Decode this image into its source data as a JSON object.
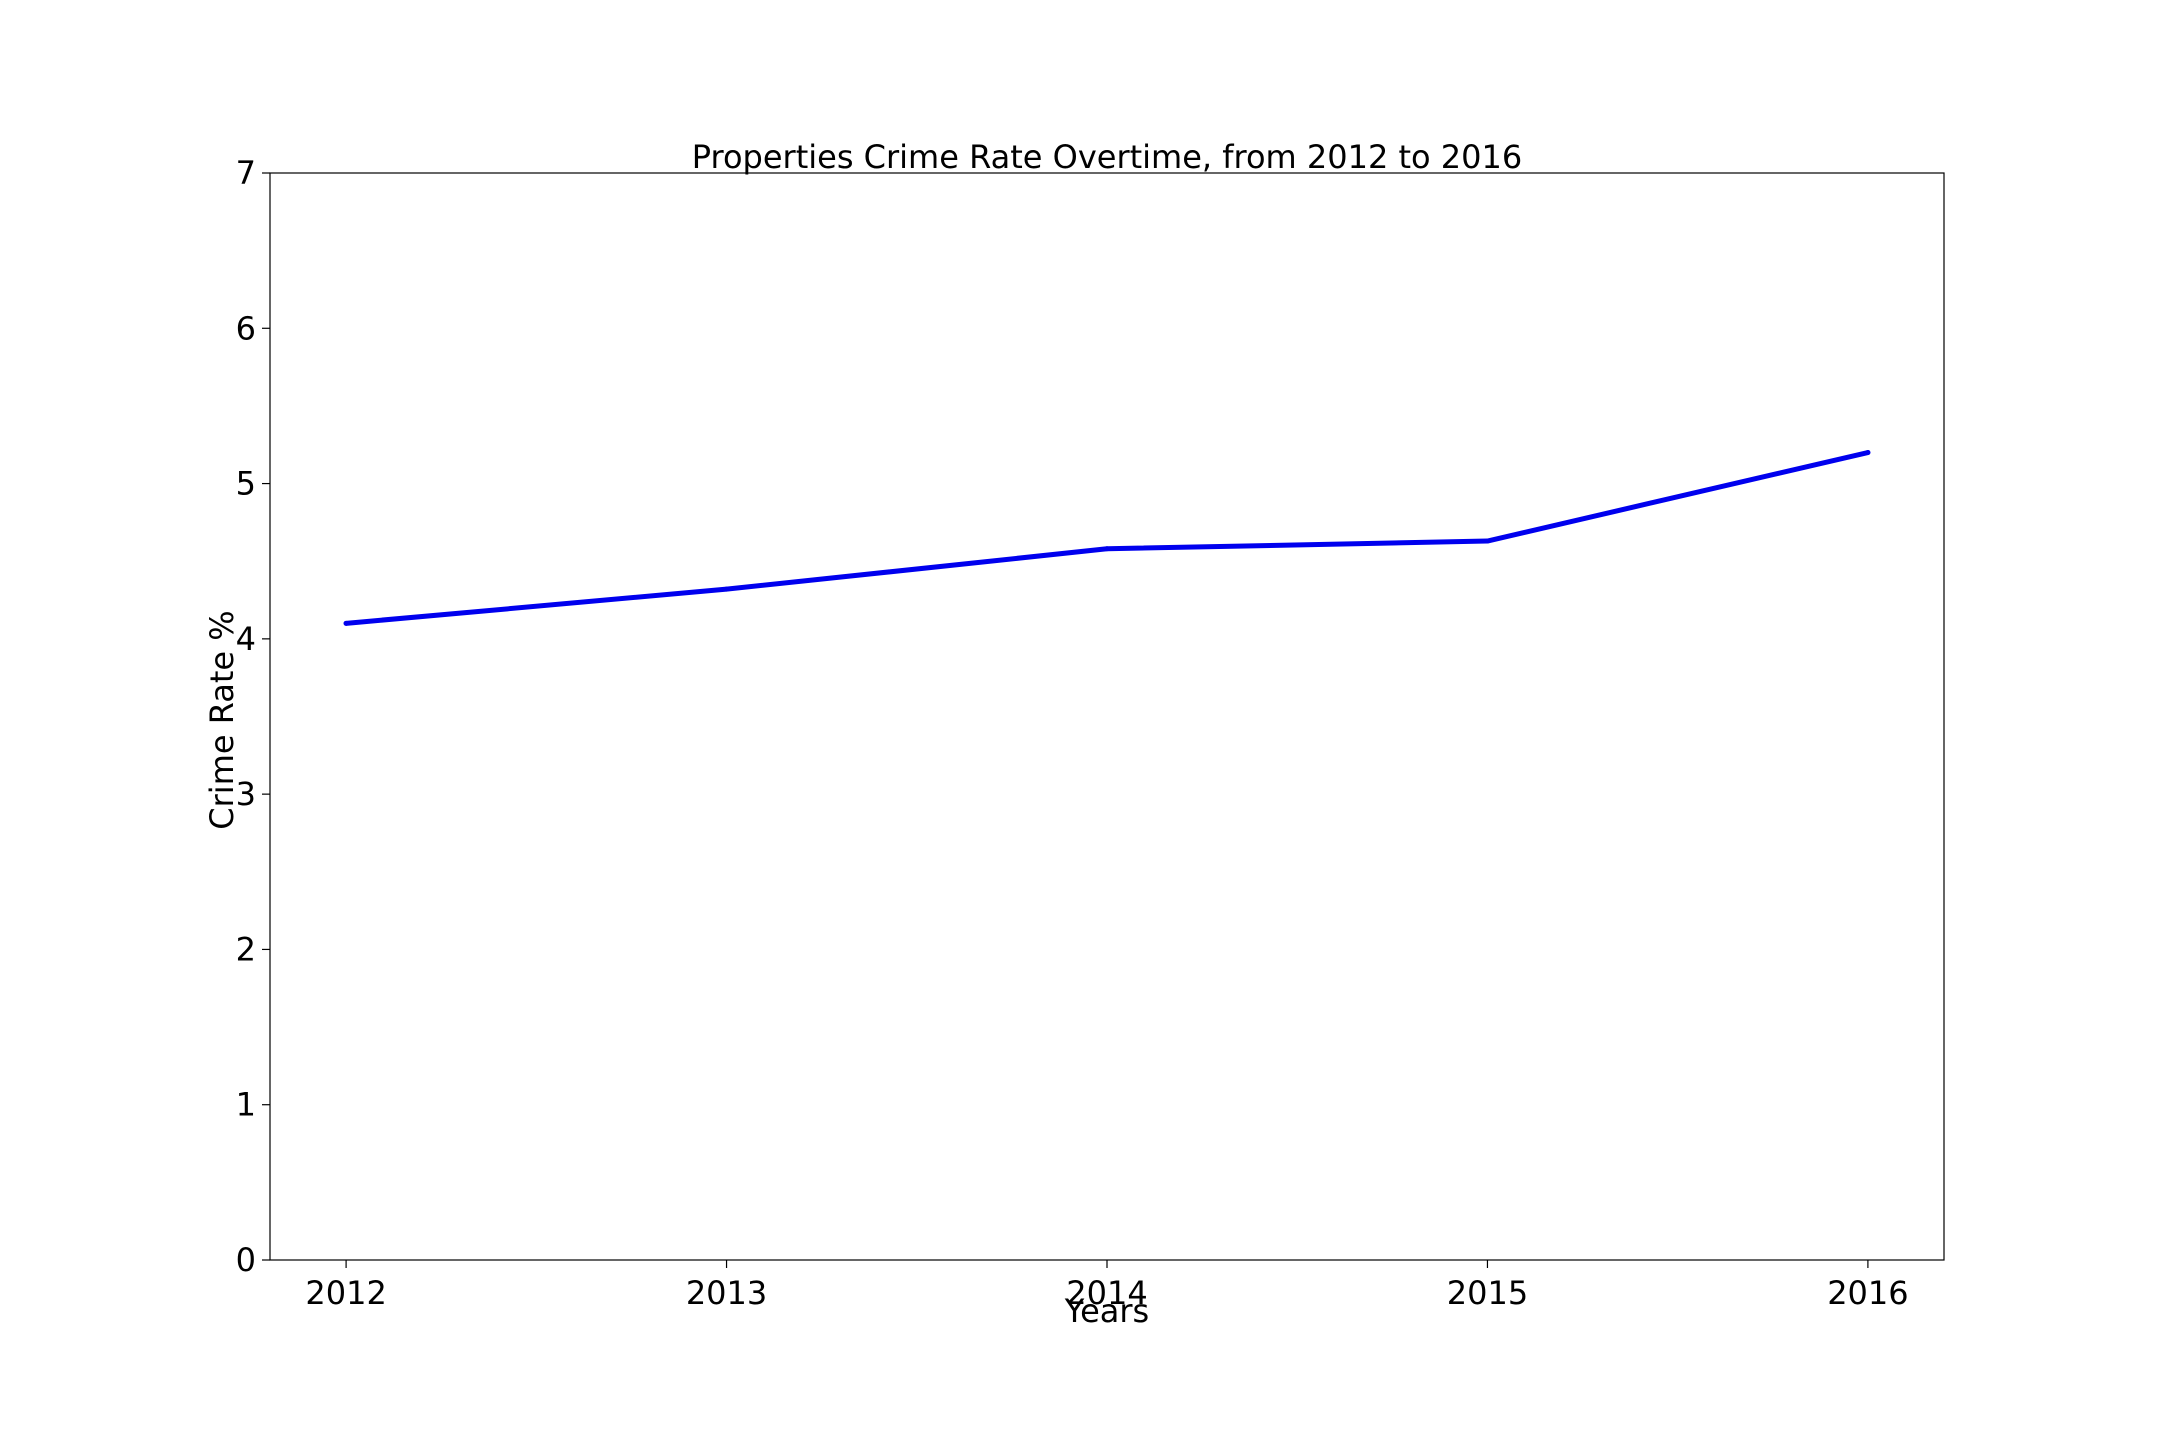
{
  "chart_data": {
    "type": "line",
    "title": "Properties Crime Rate Overtime, from 2012 to 2016",
    "xlabel": "Years",
    "ylabel": "Crime Rate %",
    "x": [
      2012,
      2013,
      2014,
      2015,
      2016
    ],
    "series": [
      {
        "values": [
          4.1,
          4.32,
          4.58,
          4.63,
          5.2
        ],
        "color": "#0000ee"
      }
    ],
    "xlim": [
      2011.8,
      2016.2
    ],
    "ylim": [
      0,
      7
    ],
    "xticks": [
      "2012",
      "2013",
      "2014",
      "2015",
      "2016"
    ],
    "yticks": [
      "0",
      "1",
      "2",
      "3",
      "4",
      "5",
      "6",
      "7"
    ],
    "grid": false,
    "legend": "none"
  }
}
